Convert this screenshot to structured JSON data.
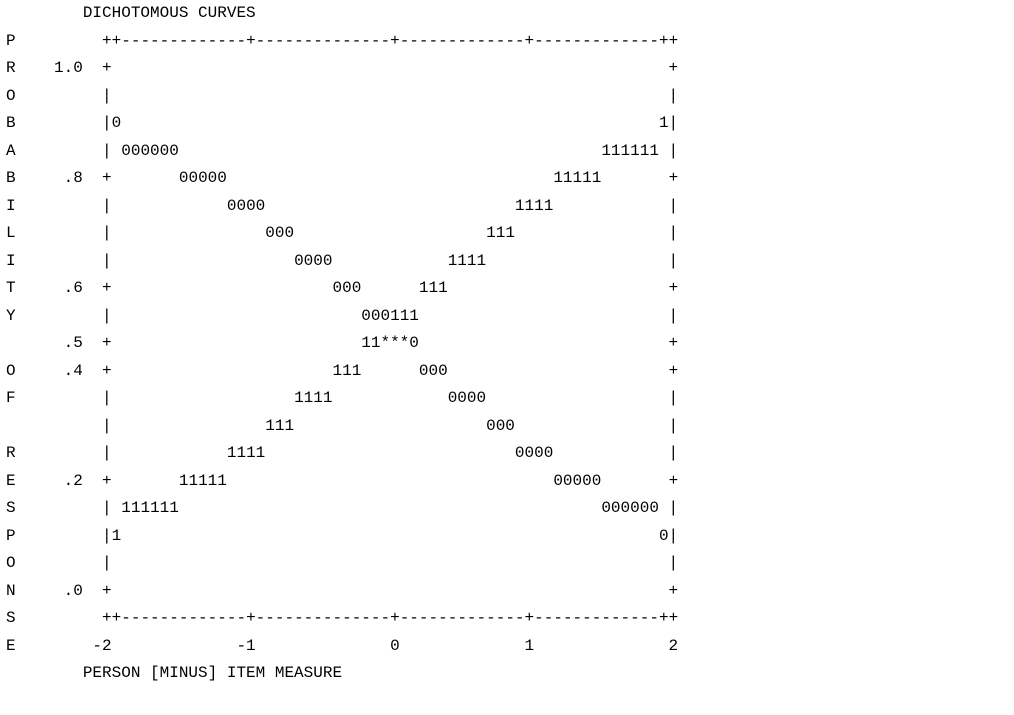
{
  "chart_data": {
    "type": "line",
    "title": "DICHOTOMOUS CURVES",
    "xlabel": "PERSON [MINUS] ITEM MEASURE",
    "ylabel": "PROBABILITY OF RESPONSE",
    "xlim": [
      -2,
      2
    ],
    "ylim": [
      0,
      1
    ],
    "x_ticks": [
      "-2",
      "-1",
      "0",
      "1",
      "2"
    ],
    "y_ticks": [
      "1.0",
      ".8",
      ".6",
      ".5",
      ".4",
      ".2",
      ".0"
    ],
    "series": [
      {
        "name": "0",
        "marker": "0",
        "x": [
          -2.0,
          -1.5,
          -1.0,
          -0.5,
          0.0,
          0.5,
          1.0,
          1.5,
          2.0
        ],
        "y": [
          0.88,
          0.82,
          0.73,
          0.62,
          0.5,
          0.38,
          0.27,
          0.18,
          0.12
        ]
      },
      {
        "name": "1",
        "marker": "1",
        "x": [
          -2.0,
          -1.5,
          -1.0,
          -0.5,
          0.0,
          0.5,
          1.0,
          1.5,
          2.0
        ],
        "y": [
          0.12,
          0.18,
          0.27,
          0.38,
          0.5,
          0.62,
          0.73,
          0.82,
          0.88
        ]
      }
    ],
    "intersection_marker": "***"
  }
}
